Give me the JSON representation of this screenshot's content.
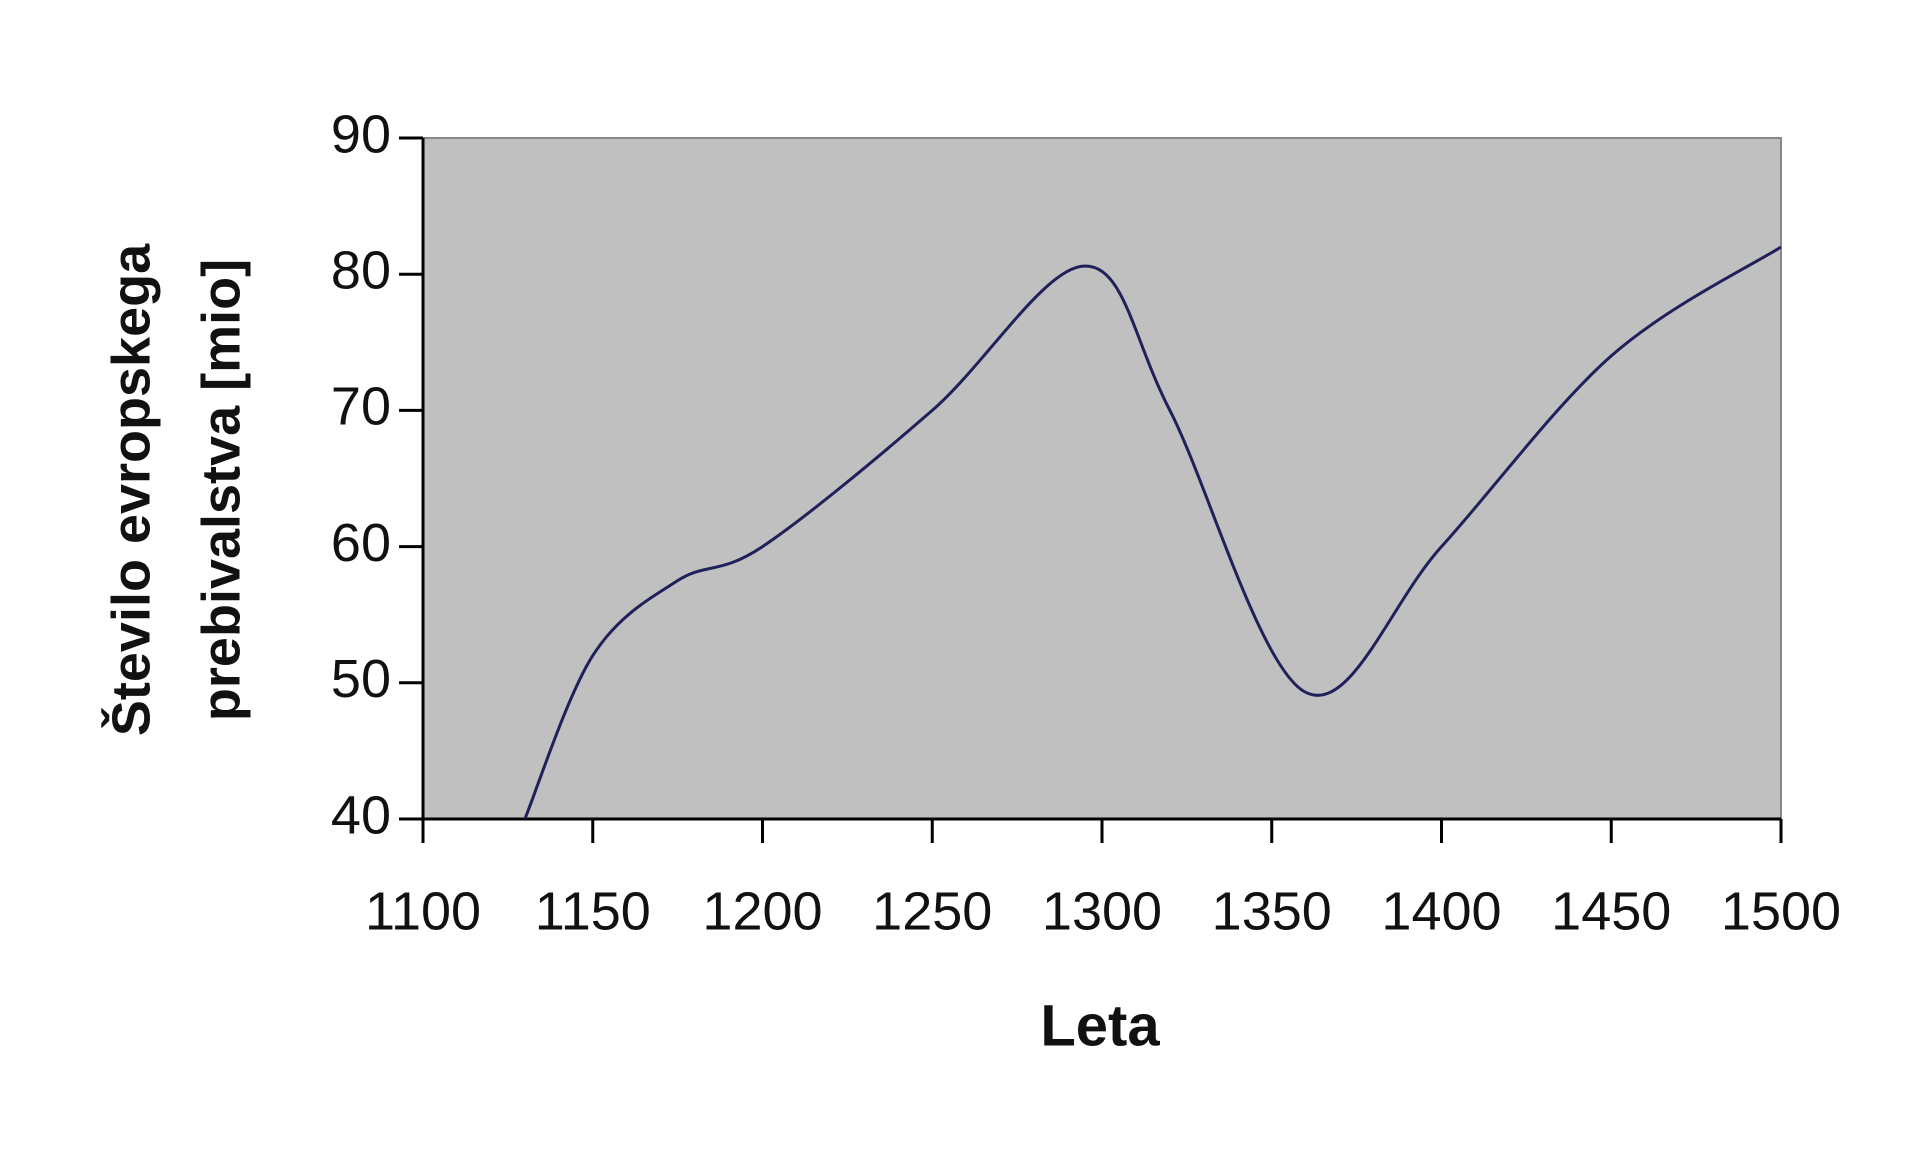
{
  "chart_data": {
    "type": "line",
    "x_label": "Leta",
    "y_label": [
      "Število evropskega",
      "prebivalstva [mio]"
    ],
    "x": [
      1130,
      1150,
      1175,
      1200,
      1250,
      1295,
      1320,
      1360,
      1400,
      1450,
      1500
    ],
    "series": [
      {
        "color": "#20205a",
        "values": [
          40,
          52,
          57.5,
          60,
          70,
          80.6,
          70,
          49.3,
          60,
          74,
          82
        ]
      }
    ],
    "xlim": [
      1100,
      1500
    ],
    "xticks": [
      1100,
      1150,
      1200,
      1250,
      1300,
      1350,
      1400,
      1450,
      1500
    ],
    "ylim": [
      40,
      90
    ],
    "yticks": [
      40,
      50,
      60,
      70,
      80,
      90
    ],
    "plot_background": "#c0c0c0"
  }
}
